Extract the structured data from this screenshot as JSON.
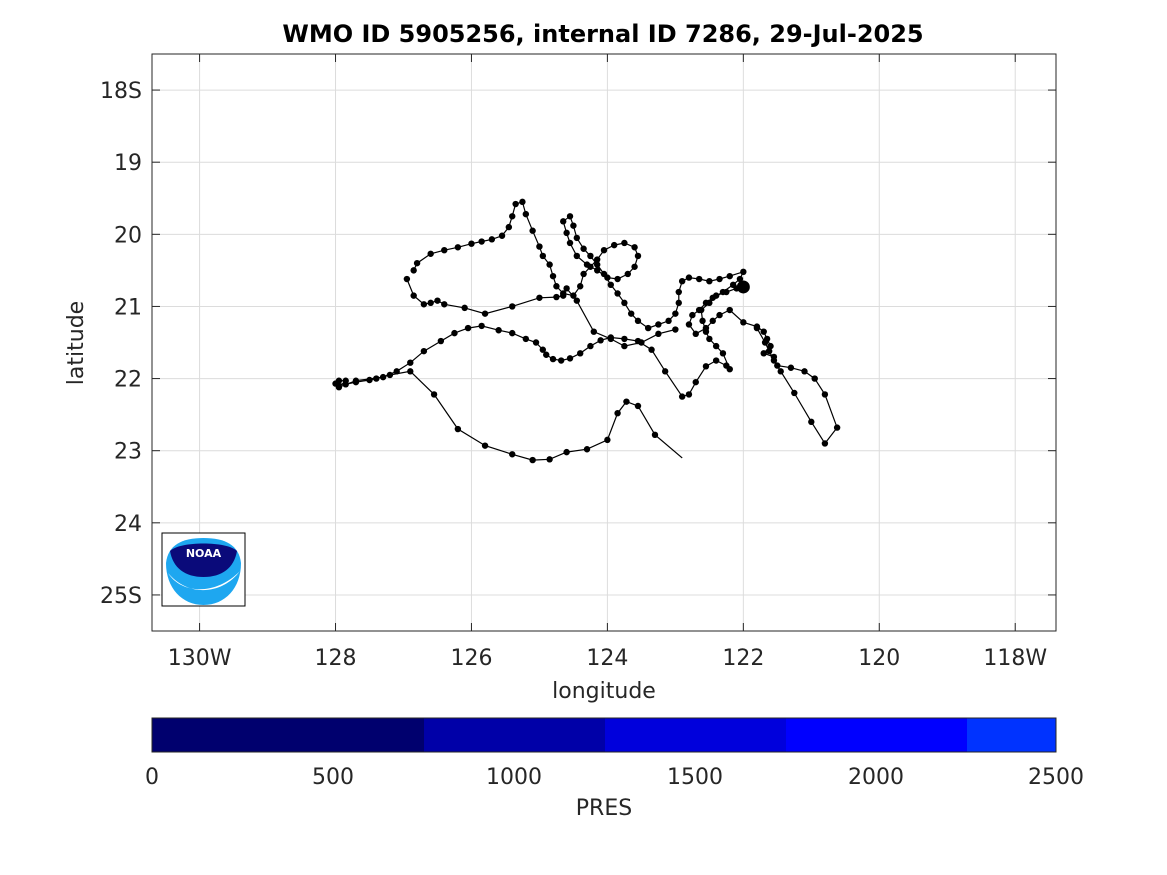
{
  "chart_data": {
    "type": "scatter",
    "title": "WMO ID 5905256, internal ID 7286, 29-Jul-2025",
    "xlabel": "longitude",
    "ylabel": "latitude",
    "xlim": [
      -130.7,
      -117.4
    ],
    "ylim": [
      -25.5,
      -17.5
    ],
    "x_tick_values": [
      -130,
      -128,
      -126,
      -124,
      -122,
      -120,
      -118
    ],
    "x_tick_labels": [
      "130W",
      "128",
      "126",
      "124",
      "122",
      "120",
      "118W"
    ],
    "y_tick_values": [
      -18,
      -19,
      -20,
      -21,
      -22,
      -23,
      -24,
      -25
    ],
    "y_tick_labels": [
      "18S",
      "19",
      "20",
      "21",
      "22",
      "23",
      "24",
      "25S"
    ],
    "grid": true,
    "marker_color": "#000000",
    "last_position": {
      "lon": -122.0,
      "lat": -20.73
    },
    "points": [
      [
        -122.9,
        -23.1
      ],
      [
        -123.3,
        -22.78
      ],
      [
        -123.55,
        -22.38
      ],
      [
        -123.72,
        -22.32
      ],
      [
        -123.85,
        -22.48
      ],
      [
        -124.0,
        -22.85
      ],
      [
        -124.3,
        -22.98
      ],
      [
        -124.6,
        -23.02
      ],
      [
        -124.85,
        -23.12
      ],
      [
        -125.1,
        -23.13
      ],
      [
        -125.4,
        -23.05
      ],
      [
        -125.8,
        -22.93
      ],
      [
        -126.2,
        -22.7
      ],
      [
        -126.55,
        -22.22
      ],
      [
        -126.9,
        -21.9
      ],
      [
        -127.2,
        -21.95
      ],
      [
        -127.4,
        -22.0
      ],
      [
        -127.5,
        -22.02
      ],
      [
        -127.7,
        -22.05
      ],
      [
        -127.85,
        -22.08
      ],
      [
        -128.0,
        -22.07
      ],
      [
        -127.95,
        -22.03
      ],
      [
        -127.85,
        -22.03
      ],
      [
        -127.95,
        -22.12
      ],
      [
        -127.7,
        -22.03
      ],
      [
        -127.3,
        -21.98
      ],
      [
        -127.1,
        -21.9
      ],
      [
        -126.9,
        -21.78
      ],
      [
        -126.7,
        -21.62
      ],
      [
        -126.45,
        -21.48
      ],
      [
        -126.25,
        -21.37
      ],
      [
        -126.05,
        -21.3
      ],
      [
        -125.85,
        -21.27
      ],
      [
        -125.6,
        -21.33
      ],
      [
        -125.4,
        -21.37
      ],
      [
        -125.2,
        -21.45
      ],
      [
        -125.05,
        -21.5
      ],
      [
        -124.95,
        -21.6
      ],
      [
        -124.9,
        -21.67
      ],
      [
        -124.8,
        -21.73
      ],
      [
        -124.68,
        -21.75
      ],
      [
        -124.55,
        -21.72
      ],
      [
        -124.4,
        -21.65
      ],
      [
        -124.25,
        -21.55
      ],
      [
        -124.1,
        -21.47
      ],
      [
        -123.95,
        -21.43
      ],
      [
        -123.75,
        -21.45
      ],
      [
        -123.55,
        -21.48
      ],
      [
        -123.35,
        -21.6
      ],
      [
        -123.15,
        -21.9
      ],
      [
        -122.9,
        -22.25
      ],
      [
        -122.8,
        -22.22
      ],
      [
        -122.7,
        -22.05
      ],
      [
        -122.55,
        -21.83
      ],
      [
        -122.4,
        -21.75
      ],
      [
        -122.25,
        -21.82
      ],
      [
        -122.2,
        -21.87
      ],
      [
        -122.3,
        -21.65
      ],
      [
        -122.4,
        -21.55
      ],
      [
        -122.5,
        -21.45
      ],
      [
        -122.55,
        -21.35
      ],
      [
        -122.6,
        -21.2
      ],
      [
        -122.62,
        -21.05
      ],
      [
        -122.5,
        -20.95
      ],
      [
        -122.4,
        -20.85
      ],
      [
        -122.25,
        -20.8
      ],
      [
        -122.1,
        -20.75
      ],
      [
        -122.0,
        -20.73
      ]
    ],
    "points_upper": [
      [
        -126.85,
        -20.5
      ],
      [
        -126.8,
        -20.4
      ],
      [
        -126.6,
        -20.27
      ],
      [
        -126.4,
        -20.22
      ],
      [
        -126.2,
        -20.18
      ],
      [
        -126.0,
        -20.13
      ],
      [
        -125.85,
        -20.1
      ],
      [
        -125.7,
        -20.07
      ],
      [
        -125.55,
        -20.02
      ],
      [
        -125.45,
        -19.9
      ],
      [
        -125.4,
        -19.75
      ],
      [
        -125.35,
        -19.58
      ],
      [
        -125.25,
        -19.55
      ],
      [
        -125.2,
        -19.72
      ],
      [
        -125.1,
        -19.95
      ],
      [
        -125.0,
        -20.17
      ],
      [
        -124.95,
        -20.3
      ],
      [
        -124.85,
        -20.42
      ],
      [
        -124.8,
        -20.58
      ],
      [
        -124.75,
        -20.72
      ],
      [
        -124.65,
        -20.82
      ],
      [
        -124.5,
        -20.85
      ],
      [
        -124.4,
        -20.72
      ],
      [
        -124.35,
        -20.55
      ],
      [
        -124.25,
        -20.45
      ],
      [
        -124.15,
        -20.35
      ],
      [
        -124.05,
        -20.22
      ],
      [
        -123.9,
        -20.15
      ],
      [
        -123.75,
        -20.12
      ],
      [
        -123.6,
        -20.18
      ],
      [
        -123.55,
        -20.3
      ],
      [
        -123.6,
        -20.45
      ],
      [
        -123.7,
        -20.55
      ],
      [
        -123.85,
        -20.62
      ],
      [
        -124.0,
        -20.6
      ],
      [
        -124.15,
        -20.5
      ],
      [
        -124.3,
        -20.42
      ],
      [
        -124.45,
        -20.3
      ],
      [
        -124.55,
        -20.12
      ],
      [
        -124.6,
        -19.98
      ],
      [
        -124.65,
        -19.82
      ],
      [
        -124.55,
        -19.75
      ],
      [
        -124.5,
        -19.88
      ],
      [
        -124.45,
        -20.05
      ],
      [
        -124.35,
        -20.2
      ],
      [
        -124.25,
        -20.3
      ],
      [
        -124.15,
        -20.42
      ],
      [
        -124.05,
        -20.55
      ],
      [
        -123.95,
        -20.7
      ],
      [
        -123.85,
        -20.82
      ],
      [
        -123.75,
        -20.95
      ],
      [
        -123.65,
        -21.1
      ],
      [
        -123.55,
        -21.2
      ],
      [
        -123.4,
        -21.3
      ],
      [
        -123.25,
        -21.25
      ],
      [
        -123.1,
        -21.2
      ],
      [
        -123.0,
        -21.1
      ],
      [
        -122.95,
        -20.95
      ],
      [
        -122.95,
        -20.8
      ],
      [
        -122.9,
        -20.65
      ],
      [
        -122.8,
        -20.6
      ],
      [
        -122.65,
        -20.62
      ],
      [
        -122.5,
        -20.65
      ],
      [
        -122.35,
        -20.62
      ],
      [
        -122.2,
        -20.58
      ],
      [
        -122.0,
        -20.52
      ],
      [
        -122.05,
        -20.62
      ],
      [
        -122.15,
        -20.7
      ],
      [
        -122.3,
        -20.8
      ],
      [
        -122.45,
        -20.88
      ],
      [
        -122.55,
        -20.95
      ],
      [
        -122.65,
        -21.05
      ],
      [
        -122.75,
        -21.12
      ],
      [
        -122.8,
        -21.25
      ],
      [
        -122.7,
        -21.38
      ],
      [
        -122.55,
        -21.3
      ],
      [
        -122.45,
        -21.2
      ],
      [
        -122.35,
        -21.12
      ],
      [
        -122.2,
        -21.05
      ],
      [
        -122.0,
        -21.22
      ],
      [
        -121.8,
        -21.28
      ],
      [
        -121.7,
        -21.35
      ],
      [
        -121.65,
        -21.45
      ],
      [
        -121.6,
        -21.55
      ],
      [
        -121.7,
        -21.65
      ],
      [
        -121.55,
        -21.7
      ],
      [
        -121.5,
        -21.82
      ],
      [
        -121.3,
        -21.85
      ],
      [
        -121.1,
        -21.9
      ],
      [
        -120.95,
        -22.0
      ],
      [
        -120.8,
        -22.22
      ],
      [
        -120.62,
        -22.68
      ],
      [
        -120.8,
        -22.9
      ],
      [
        -121.0,
        -22.6
      ],
      [
        -121.25,
        -22.2
      ],
      [
        -121.45,
        -21.9
      ],
      [
        -121.55,
        -21.75
      ],
      [
        -121.62,
        -21.62
      ],
      [
        -121.68,
        -21.5
      ],
      [
        -121.8,
        -21.3
      ]
    ],
    "points_west": [
      [
        -126.95,
        -20.62
      ],
      [
        -126.85,
        -20.85
      ],
      [
        -126.7,
        -20.97
      ],
      [
        -126.6,
        -20.95
      ],
      [
        -126.5,
        -20.92
      ],
      [
        -126.4,
        -20.97
      ],
      [
        -126.1,
        -21.02
      ],
      [
        -125.8,
        -21.1
      ],
      [
        -125.4,
        -21.0
      ],
      [
        -125.0,
        -20.88
      ],
      [
        -124.75,
        -20.87
      ],
      [
        -124.65,
        -20.85
      ],
      [
        -124.6,
        -20.75
      ],
      [
        -124.45,
        -20.92
      ],
      [
        -124.2,
        -21.35
      ],
      [
        -123.95,
        -21.45
      ],
      [
        -123.75,
        -21.55
      ],
      [
        -123.5,
        -21.5
      ],
      [
        -123.25,
        -21.38
      ],
      [
        -123.0,
        -21.32
      ]
    ]
  }
}
